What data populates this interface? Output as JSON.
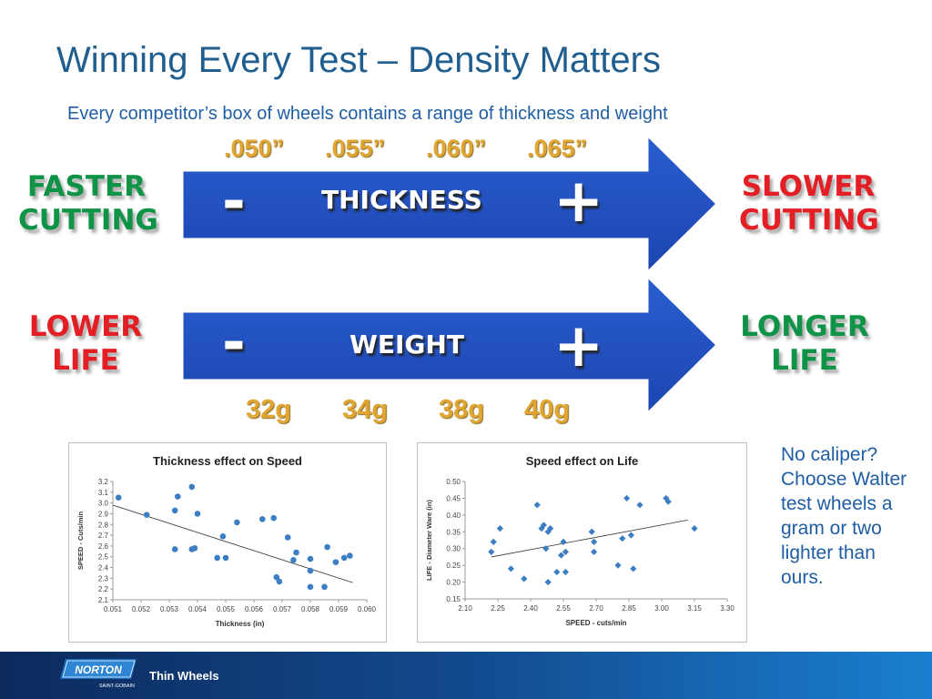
{
  "header": {
    "title": "Winning Every Test – Density Matters",
    "subtitle": "Every competitor’s box of wheels contains a range of thickness and weight"
  },
  "thickness_row": {
    "values": [
      ".050”",
      ".055”",
      ".060”",
      ".065”"
    ],
    "left_label": [
      "FASTER",
      "CUTTING"
    ],
    "right_label": [
      "SLOWER",
      "CUTTING"
    ],
    "arrow_text": "THICKNESS",
    "minus": "-",
    "plus": "+"
  },
  "weight_row": {
    "values": [
      "32g",
      "34g",
      "38g",
      "40g"
    ],
    "left_label": [
      "LOWER",
      "LIFE"
    ],
    "right_label": [
      "LONGER",
      "LIFE"
    ],
    "arrow_text": "WEIGHT",
    "minus": "-",
    "plus": "+"
  },
  "colors": {
    "title_blue": "#1f5e8e",
    "arrow_blue": "#1f4fbf",
    "gold": "#e0a631",
    "green": "#0f9447",
    "red": "#e31e24",
    "point_blue": "#3c7ec4"
  },
  "note": "No caliper? Choose Walter test wheels a gram or two lighter than ours.",
  "footer": {
    "logo_text": "NORTON",
    "logo_sub": "SAINT-GOBAIN",
    "text": "Thin Wheels"
  },
  "chart_data": [
    {
      "type": "scatter",
      "title": "Thickness effect on Speed",
      "xlabel": "Thickness (in)",
      "ylabel": "SPEED - Cuts/min",
      "xlim": [
        0.051,
        0.06
      ],
      "ylim": [
        2.1,
        3.2
      ],
      "xticks": [
        "0.051",
        "0.052",
        "0.053",
        "0.054",
        "0.055",
        "0.056",
        "0.057",
        "0.058",
        "0.059",
        "0.060"
      ],
      "yticks": [
        "2.1",
        "2.2",
        "2.3",
        "2.4",
        "2.5",
        "2.6",
        "2.7",
        "2.8",
        "2.9",
        "3.0",
        "3.1",
        "3.2"
      ],
      "marker": "circle",
      "trendline": [
        [
          0.051,
          2.98
        ],
        [
          0.0595,
          2.26
        ]
      ],
      "points": [
        [
          0.0512,
          3.05
        ],
        [
          0.0522,
          2.89
        ],
        [
          0.0532,
          2.93
        ],
        [
          0.0533,
          3.06
        ],
        [
          0.0532,
          2.57
        ],
        [
          0.0538,
          3.15
        ],
        [
          0.0538,
          2.57
        ],
        [
          0.0539,
          2.58
        ],
        [
          0.054,
          2.9
        ],
        [
          0.0547,
          2.49
        ],
        [
          0.0549,
          2.69
        ],
        [
          0.055,
          2.49
        ],
        [
          0.0554,
          2.82
        ],
        [
          0.0563,
          2.85
        ],
        [
          0.0567,
          2.86
        ],
        [
          0.0568,
          2.31
        ],
        [
          0.0569,
          2.27
        ],
        [
          0.0572,
          2.68
        ],
        [
          0.0574,
          2.47
        ],
        [
          0.0575,
          2.54
        ],
        [
          0.058,
          2.48
        ],
        [
          0.058,
          2.37
        ],
        [
          0.058,
          2.22
        ],
        [
          0.0585,
          2.22
        ],
        [
          0.0586,
          2.59
        ],
        [
          0.0589,
          2.45
        ],
        [
          0.0592,
          2.49
        ],
        [
          0.0594,
          2.51
        ]
      ]
    },
    {
      "type": "scatter",
      "title": "Speed effect on Life",
      "xlabel": "SPEED - cuts/min",
      "ylabel": "LIFE - Diameter Ware (in)",
      "xlim": [
        2.1,
        3.3
      ],
      "ylim": [
        0.15,
        0.5
      ],
      "xticks": [
        "2.10",
        "2.25",
        "2.40",
        "2.55",
        "2.70",
        "2.85",
        "3.00",
        "3.15",
        "3.30"
      ],
      "yticks": [
        "0.15",
        "0.20",
        "0.25",
        "0.30",
        "0.35",
        "0.40",
        "0.45",
        "0.50"
      ],
      "marker": "diamond",
      "trendline": [
        [
          2.22,
          0.275
        ],
        [
          3.12,
          0.385
        ]
      ],
      "points": [
        [
          2.22,
          0.29
        ],
        [
          2.23,
          0.32
        ],
        [
          2.26,
          0.36
        ],
        [
          2.31,
          0.24
        ],
        [
          2.37,
          0.21
        ],
        [
          2.43,
          0.43
        ],
        [
          2.45,
          0.36
        ],
        [
          2.46,
          0.37
        ],
        [
          2.47,
          0.3
        ],
        [
          2.48,
          0.2
        ],
        [
          2.48,
          0.35
        ],
        [
          2.49,
          0.36
        ],
        [
          2.52,
          0.23
        ],
        [
          2.54,
          0.28
        ],
        [
          2.55,
          0.32
        ],
        [
          2.56,
          0.23
        ],
        [
          2.56,
          0.29
        ],
        [
          2.68,
          0.35
        ],
        [
          2.69,
          0.32
        ],
        [
          2.69,
          0.29
        ],
        [
          2.8,
          0.25
        ],
        [
          2.82,
          0.33
        ],
        [
          2.84,
          0.45
        ],
        [
          2.86,
          0.34
        ],
        [
          2.87,
          0.24
        ],
        [
          2.9,
          0.43
        ],
        [
          3.02,
          0.45
        ],
        [
          3.03,
          0.44
        ],
        [
          3.15,
          0.36
        ]
      ]
    }
  ]
}
